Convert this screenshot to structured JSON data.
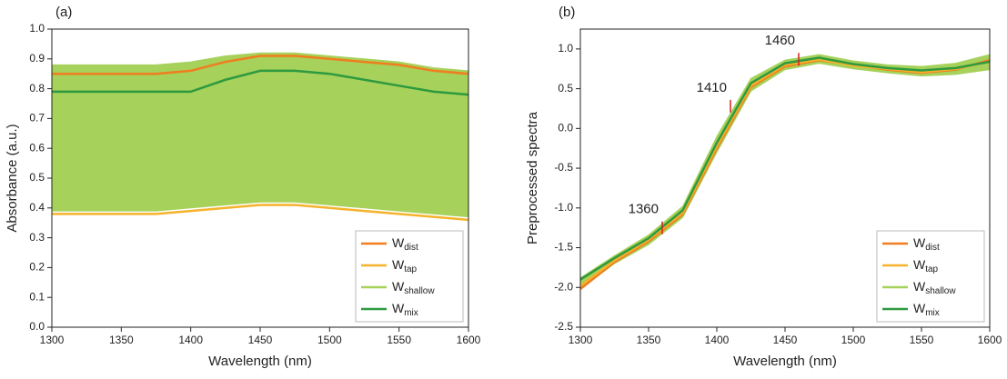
{
  "chart_data": [
    {
      "type": "line",
      "panel": "(a)",
      "xlabel": "Wavelength (nm)",
      "ylabel": "Absorbance (a.u.)",
      "x": [
        1300,
        1325,
        1350,
        1375,
        1400,
        1425,
        1450,
        1475,
        1500,
        1525,
        1550,
        1575,
        1600
      ],
      "xlim": [
        1300,
        1600
      ],
      "xticks": [
        1300,
        1350,
        1400,
        1450,
        1500,
        1550,
        1600
      ],
      "ylim": [
        0,
        1
      ],
      "yticks": [
        {
          "value": 0,
          "label": "0.0"
        },
        0.1,
        0.2,
        0.3,
        0.4,
        0.5,
        0.6,
        0.7,
        0.8,
        0.9,
        {
          "value": 1,
          "label": "1.0"
        }
      ],
      "legend": "lower right",
      "series": [
        {
          "name": "Wdist",
          "color": "#f07d1e",
          "values": [
            0.85,
            0.85,
            0.85,
            0.85,
            0.86,
            0.89,
            0.91,
            0.91,
            0.9,
            0.89,
            0.88,
            0.86,
            0.85
          ]
        },
        {
          "name": "Wtap",
          "color": "#f5b22b",
          "values": [
            0.38,
            0.38,
            0.38,
            0.38,
            0.39,
            0.4,
            0.41,
            0.41,
            0.4,
            0.39,
            0.38,
            0.37,
            0.36
          ]
        },
        {
          "name": "Wshallow",
          "color": "#a6d15a",
          "values": [
            0.62,
            0.62,
            0.62,
            0.62,
            0.63,
            0.66,
            0.68,
            0.68,
            0.67,
            0.65,
            0.64,
            0.62,
            0.61
          ],
          "band": {
            "lower": [
              0.39,
              0.39,
              0.39,
              0.39,
              0.4,
              0.41,
              0.42,
              0.42,
              0.41,
              0.4,
              0.39,
              0.38,
              0.37
            ],
            "upper": [
              0.88,
              0.88,
              0.88,
              0.88,
              0.89,
              0.91,
              0.92,
              0.92,
              0.91,
              0.9,
              0.89,
              0.87,
              0.86
            ]
          }
        },
        {
          "name": "Wmix",
          "color": "#2e9a3f",
          "values": [
            0.79,
            0.79,
            0.79,
            0.79,
            0.79,
            0.83,
            0.86,
            0.86,
            0.85,
            0.83,
            0.81,
            0.79,
            0.78
          ]
        }
      ]
    },
    {
      "type": "line",
      "panel": "(b)",
      "xlabel": "Wavelength (nm)",
      "ylabel": "Preprocessed spectra",
      "x": [
        1300,
        1325,
        1350,
        1375,
        1400,
        1425,
        1450,
        1475,
        1500,
        1525,
        1550,
        1575,
        1600
      ],
      "xlim": [
        1300,
        1600
      ],
      "xticks": [
        1300,
        1350,
        1400,
        1450,
        1500,
        1550,
        1600
      ],
      "ylim": [
        -2.5,
        1.25
      ],
      "yticks": [
        -2.5,
        {
          "value": -2,
          "label": "-2.0"
        },
        -1.5,
        {
          "value": -1,
          "label": "-1.0"
        },
        -0.5,
        {
          "value": 0,
          "label": "0.0"
        },
        0.5,
        {
          "value": 1,
          "label": "1.0"
        }
      ],
      "legend": "lower right",
      "annotations": [
        {
          "text": "1360",
          "x": 1360,
          "y": -1.25
        },
        {
          "text": "1410",
          "x": 1410,
          "y": 0.28
        },
        {
          "text": "1460",
          "x": 1460,
          "y": 0.87
        }
      ],
      "series": [
        {
          "name": "Wdist",
          "color": "#f07d1e",
          "values": [
            -2.02,
            -1.68,
            -1.42,
            -1.08,
            -0.25,
            0.52,
            0.78,
            0.86,
            0.8,
            0.74,
            0.7,
            0.74,
            0.86
          ]
        },
        {
          "name": "Wtap",
          "color": "#f5b22b",
          "values": [
            -1.98,
            -1.66,
            -1.4,
            -1.06,
            -0.22,
            0.54,
            0.8,
            0.87,
            0.79,
            0.75,
            0.71,
            0.75,
            0.84
          ]
        },
        {
          "name": "Wshallow",
          "color": "#a6d15a",
          "values": [
            -1.95,
            -1.65,
            -1.4,
            -1.05,
            -0.2,
            0.55,
            0.8,
            0.88,
            0.8,
            0.75,
            0.72,
            0.75,
            0.85
          ],
          "band": {
            "lower": [
              -2.02,
              -1.7,
              -1.46,
              -1.12,
              -0.3,
              0.47,
              0.74,
              0.82,
              0.75,
              0.7,
              0.66,
              0.68,
              0.74
            ],
            "upper": [
              -1.88,
              -1.6,
              -1.34,
              -0.98,
              -0.1,
              0.63,
              0.86,
              0.93,
              0.85,
              0.8,
              0.78,
              0.82,
              0.93
            ]
          }
        },
        {
          "name": "Wmix",
          "color": "#2e9a3f",
          "values": [
            -1.9,
            -1.63,
            -1.38,
            -1.03,
            -0.18,
            0.57,
            0.82,
            0.89,
            0.81,
            0.76,
            0.73,
            0.76,
            0.84
          ]
        }
      ]
    }
  ]
}
